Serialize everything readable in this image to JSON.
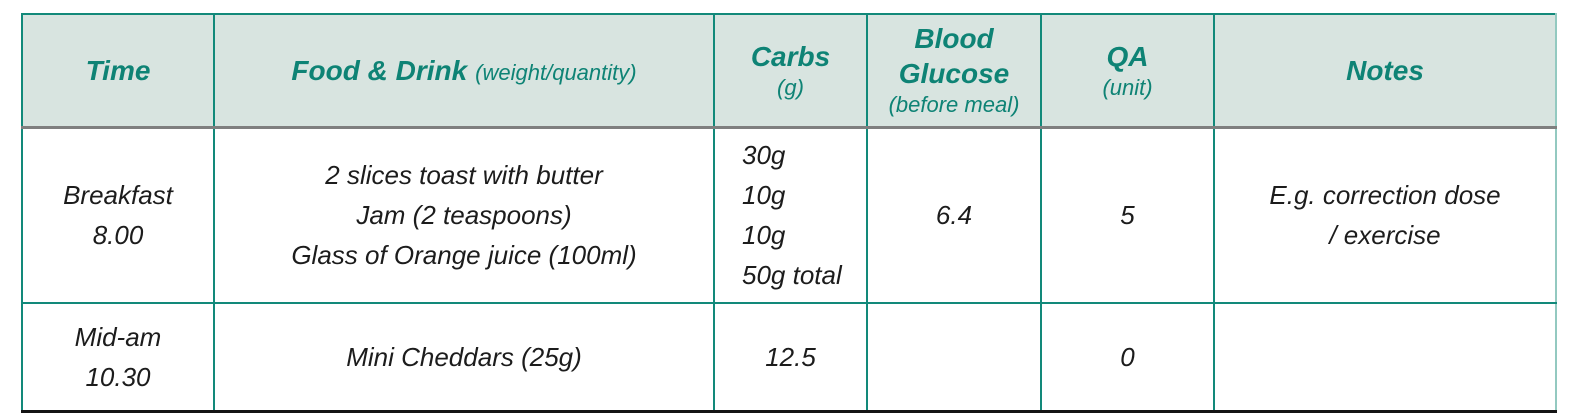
{
  "colors": {
    "accent_teal": "#12897a",
    "header_text": "#0e8375",
    "header_background": "#d8e4e0",
    "header_rule_grey": "#7f7f7f",
    "outer_bottom_black": "#141414",
    "right_border_pale_teal": "#93c9c0",
    "body_text": "#1c1c1c"
  },
  "header": {
    "time": {
      "label": "Time"
    },
    "food": {
      "label": "Food & Drink",
      "sub": "(weight/quantity)"
    },
    "carbs": {
      "label": "Carbs",
      "sub": "(g)"
    },
    "blood_glucose": {
      "label": "Blood Glucose",
      "sub": "(before meal)"
    },
    "qa": {
      "label": "QA",
      "sub": "(unit)"
    },
    "notes": {
      "label": "Notes"
    }
  },
  "rows": [
    {
      "time": [
        "Breakfast",
        "8.00"
      ],
      "food": [
        "2 slices toast with butter",
        "Jam (2 teaspoons)",
        "Glass of Orange juice (100ml)"
      ],
      "carbs": [
        "30g",
        "10g",
        "10g",
        "50g total"
      ],
      "blood_glucose": "6.4",
      "qa": "5",
      "notes": [
        "E.g. correction dose",
        "/ exercise"
      ]
    },
    {
      "time": [
        "Mid-am",
        "10.30"
      ],
      "food": [
        "Mini Cheddars (25g)"
      ],
      "carbs": [
        "12.5"
      ],
      "blood_glucose": "",
      "qa": "0",
      "notes": []
    }
  ]
}
